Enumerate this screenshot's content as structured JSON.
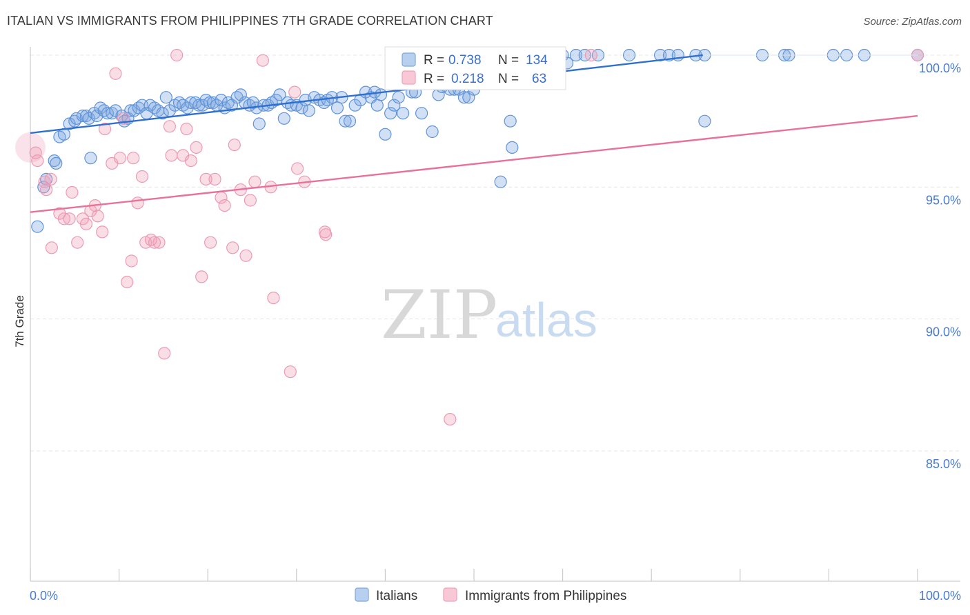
{
  "title": "ITALIAN VS IMMIGRANTS FROM PHILIPPINES 7TH GRADE CORRELATION CHART",
  "source": "Source: ZipAtlas.com",
  "watermark": {
    "zip": "ZIP",
    "atlas": "atlas"
  },
  "legend_box": {
    "rows": [
      {
        "r_label": "R =",
        "r_value": "0.738",
        "n_label": "N =",
        "n_value": "134",
        "color": "#7aa6e0"
      },
      {
        "r_label": "R =",
        "r_value": "0.218",
        "n_label": "N =",
        "n_value": "63",
        "color": "#f0a0b8"
      }
    ]
  },
  "bottom_legend": [
    {
      "label": "Italians",
      "color": "#7aa6e0"
    },
    {
      "label": "Immigrants from Philippines",
      "color": "#f0a0b8"
    }
  ],
  "chart_data": {
    "type": "scatter",
    "title": "ITALIAN VS IMMIGRANTS FROM PHILIPPINES 7TH GRADE CORRELATION CHART",
    "xlabel": "",
    "ylabel": "7th Grade",
    "xlim": [
      0,
      100
    ],
    "ylim": [
      80.3,
      100.8
    ],
    "x_tick_labels": [
      "0.0%",
      "100.0%"
    ],
    "y_ticks": [
      85,
      90,
      95,
      100
    ],
    "y_tick_labels": [
      "85.0%",
      "90.0%",
      "95.0%",
      "100.0%"
    ],
    "grid": true,
    "series": [
      {
        "name": "Italians",
        "color": "#7aa6e0",
        "line_color": "#2f6fd0",
        "trend": {
          "x": [
            0,
            75.8
          ],
          "y": [
            97.05,
            100.0
          ]
        },
        "points": [
          [
            0.8,
            93.5
          ],
          [
            1.5,
            95.0
          ],
          [
            1.8,
            95.3
          ],
          [
            2.7,
            96.0
          ],
          [
            2.9,
            95.9
          ],
          [
            3.3,
            96.9
          ],
          [
            3.8,
            97.0
          ],
          [
            4.4,
            97.4
          ],
          [
            5.0,
            97.5
          ],
          [
            5.2,
            97.6
          ],
          [
            5.9,
            97.7
          ],
          [
            6.3,
            97.7
          ],
          [
            6.6,
            97.6
          ],
          [
            6.8,
            96.1
          ],
          [
            7.2,
            97.8
          ],
          [
            7.5,
            97.7
          ],
          [
            7.9,
            98.0
          ],
          [
            8.3,
            97.9
          ],
          [
            8.7,
            97.8
          ],
          [
            9.2,
            97.8
          ],
          [
            9.6,
            97.9
          ],
          [
            10.3,
            97.7
          ],
          [
            10.6,
            97.5
          ],
          [
            11.0,
            97.6
          ],
          [
            11.3,
            97.9
          ],
          [
            11.7,
            97.9
          ],
          [
            12.2,
            98.0
          ],
          [
            12.6,
            98.1
          ],
          [
            13.1,
            97.8
          ],
          [
            13.5,
            98.1
          ],
          [
            14.0,
            98.0
          ],
          [
            14.4,
            97.9
          ],
          [
            14.9,
            97.8
          ],
          [
            15.3,
            98.4
          ],
          [
            15.7,
            97.9
          ],
          [
            16.3,
            98.1
          ],
          [
            16.8,
            98.2
          ],
          [
            17.2,
            98.1
          ],
          [
            17.7,
            98.0
          ],
          [
            18.1,
            98.2
          ],
          [
            18.6,
            98.2
          ],
          [
            19.0,
            98.1
          ],
          [
            19.4,
            98.1
          ],
          [
            19.8,
            98.3
          ],
          [
            20.2,
            98.2
          ],
          [
            20.6,
            98.2
          ],
          [
            21.0,
            98.1
          ],
          [
            21.5,
            98.3
          ],
          [
            21.9,
            98.0
          ],
          [
            22.3,
            98.2
          ],
          [
            22.7,
            98.1
          ],
          [
            23.3,
            98.4
          ],
          [
            23.7,
            98.5
          ],
          [
            24.2,
            98.2
          ],
          [
            24.7,
            98.1
          ],
          [
            25.1,
            98.2
          ],
          [
            25.5,
            98.0
          ],
          [
            25.8,
            97.4
          ],
          [
            26.3,
            98.1
          ],
          [
            26.8,
            98.1
          ],
          [
            27.2,
            98.2
          ],
          [
            27.7,
            98.3
          ],
          [
            28.1,
            98.5
          ],
          [
            28.6,
            97.6
          ],
          [
            29.0,
            98.2
          ],
          [
            29.4,
            98.1
          ],
          [
            30.0,
            98.1
          ],
          [
            30.6,
            98.0
          ],
          [
            31.0,
            98.3
          ],
          [
            31.4,
            97.9
          ],
          [
            32.0,
            98.4
          ],
          [
            32.6,
            98.3
          ],
          [
            33.1,
            98.2
          ],
          [
            33.5,
            98.3
          ],
          [
            34.0,
            98.4
          ],
          [
            34.6,
            98.0
          ],
          [
            35.1,
            98.4
          ],
          [
            35.5,
            97.5
          ],
          [
            36.0,
            97.5
          ],
          [
            36.6,
            98.1
          ],
          [
            37.2,
            98.3
          ],
          [
            37.8,
            98.6
          ],
          [
            38.4,
            98.4
          ],
          [
            38.8,
            98.6
          ],
          [
            39.1,
            98.1
          ],
          [
            39.5,
            98.5
          ],
          [
            40.0,
            97.0
          ],
          [
            40.6,
            97.8
          ],
          [
            41.0,
            98.1
          ],
          [
            41.5,
            98.4
          ],
          [
            42.0,
            97.8
          ],
          [
            42.5,
            99.0
          ],
          [
            43.0,
            98.6
          ],
          [
            43.4,
            98.6
          ],
          [
            44.1,
            97.8
          ],
          [
            45.3,
            97.1
          ],
          [
            46.0,
            98.5
          ],
          [
            46.4,
            98.8
          ],
          [
            47.3,
            98.7
          ],
          [
            47.8,
            98.7
          ],
          [
            48.3,
            98.7
          ],
          [
            48.9,
            98.4
          ],
          [
            49.4,
            98.4
          ],
          [
            50.0,
            98.7
          ],
          [
            51.0,
            99.0
          ],
          [
            52.0,
            99.1
          ],
          [
            53.0,
            99.2
          ],
          [
            54.1,
            97.5
          ],
          [
            54.3,
            96.5
          ],
          [
            56.0,
            99.3
          ],
          [
            56.5,
            99.5
          ],
          [
            57.0,
            99.6
          ],
          [
            57.5,
            100.0
          ],
          [
            58.0,
            100.0
          ],
          [
            59.0,
            100.0
          ],
          [
            59.5,
            99.4
          ],
          [
            60.0,
            100.0
          ],
          [
            60.5,
            99.7
          ],
          [
            61.5,
            100.0
          ],
          [
            62.5,
            100.0
          ],
          [
            64.0,
            100.0
          ],
          [
            67.5,
            100.0
          ],
          [
            71.0,
            100.0
          ],
          [
            72.0,
            100.0
          ],
          [
            73.0,
            100.0
          ],
          [
            75.0,
            100.0
          ],
          [
            76.0,
            100.0
          ],
          [
            82.5,
            100.0
          ],
          [
            85.0,
            100.0
          ],
          [
            85.5,
            100.0
          ],
          [
            90.5,
            100.0
          ],
          [
            92.0,
            100.0
          ],
          [
            94.0,
            100.0
          ],
          [
            100.0,
            100.0
          ],
          [
            53.0,
            95.2
          ],
          [
            76.0,
            97.5
          ]
        ]
      },
      {
        "name": "Immigrants from Philippines",
        "color": "#f0a0b8",
        "line_color": "#e8709a",
        "trend": {
          "x": [
            0,
            100
          ],
          "y": [
            94.05,
            97.7
          ]
        },
        "points": [
          [
            0.6,
            96.3
          ],
          [
            1.8,
            94.9
          ],
          [
            2.3,
            95.3
          ],
          [
            2.4,
            92.7
          ],
          [
            3.3,
            94.0
          ],
          [
            3.8,
            93.8
          ],
          [
            4.4,
            93.8
          ],
          [
            4.7,
            94.8
          ],
          [
            5.3,
            92.9
          ],
          [
            5.9,
            93.8
          ],
          [
            6.3,
            93.6
          ],
          [
            6.8,
            94.1
          ],
          [
            7.3,
            94.3
          ],
          [
            7.6,
            93.9
          ],
          [
            8.1,
            93.3
          ],
          [
            8.4,
            97.2
          ],
          [
            9.2,
            95.9
          ],
          [
            9.6,
            99.3
          ],
          [
            10.1,
            96.1
          ],
          [
            10.5,
            97.6
          ],
          [
            10.9,
            91.4
          ],
          [
            11.4,
            92.2
          ],
          [
            12.1,
            94.4
          ],
          [
            12.6,
            95.4
          ],
          [
            13.0,
            92.9
          ],
          [
            13.6,
            93.0
          ],
          [
            14.0,
            92.9
          ],
          [
            14.5,
            92.9
          ],
          [
            15.1,
            88.7
          ],
          [
            15.7,
            97.3
          ],
          [
            15.9,
            96.2
          ],
          [
            16.5,
            100.0
          ],
          [
            17.2,
            96.2
          ],
          [
            17.6,
            97.2
          ],
          [
            18.1,
            96.0
          ],
          [
            18.7,
            96.5
          ],
          [
            19.3,
            91.6
          ],
          [
            19.8,
            95.3
          ],
          [
            20.3,
            92.9
          ],
          [
            20.8,
            95.3
          ],
          [
            21.5,
            94.6
          ],
          [
            21.9,
            94.3
          ],
          [
            22.8,
            92.7
          ],
          [
            23.0,
            96.6
          ],
          [
            23.7,
            94.9
          ],
          [
            24.3,
            92.4
          ],
          [
            24.8,
            94.5
          ],
          [
            25.3,
            95.2
          ],
          [
            26.2,
            99.8
          ],
          [
            27.1,
            95.0
          ],
          [
            27.4,
            90.8
          ],
          [
            29.3,
            88.0
          ],
          [
            29.8,
            98.6
          ],
          [
            30.1,
            95.7
          ],
          [
            30.9,
            95.2
          ],
          [
            33.2,
            93.3
          ],
          [
            33.3,
            93.2
          ],
          [
            47.3,
            86.2
          ],
          [
            63.2,
            100.0
          ],
          [
            100.0,
            100.0
          ],
          [
            0.8,
            96.0
          ],
          [
            1.6,
            95.2
          ],
          [
            11.6,
            96.1
          ]
        ]
      }
    ]
  }
}
